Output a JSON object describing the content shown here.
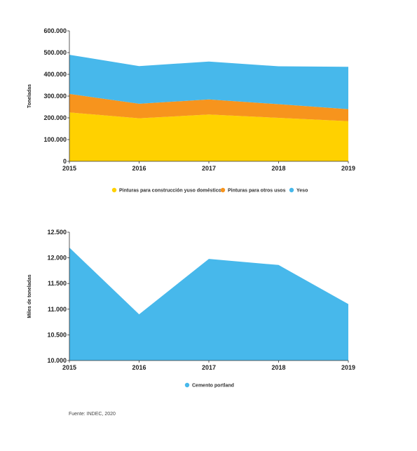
{
  "chart_data": [
    {
      "type": "area",
      "stacked": true,
      "x": [
        "2015",
        "2016",
        "2017",
        "2018",
        "2019"
      ],
      "ylabel": "Toneladas",
      "ylim": [
        0,
        600000
      ],
      "yticks": [
        "0",
        "100.000",
        "200.000",
        "300.000",
        "400.000",
        "500.000",
        "600.000"
      ],
      "series": [
        {
          "name": "Pinturas para construcción yuso doméstico",
          "color": "#FFD100",
          "values": [
            225000,
            198000,
            215000,
            200000,
            185000
          ]
        },
        {
          "name": "Pinturas para otros usos",
          "color": "#F7941D",
          "values": [
            85000,
            67000,
            70000,
            63000,
            55000
          ]
        },
        {
          "name": "Yeso",
          "color": "#47B8EB",
          "values": [
            180000,
            173000,
            174000,
            174000,
            195000
          ]
        }
      ],
      "legend": "bottom"
    },
    {
      "type": "area",
      "x": [
        "2015",
        "2016",
        "2017",
        "2018",
        "2019"
      ],
      "ylabel": "Miles de toneladas",
      "ylim": [
        10000,
        12500
      ],
      "yticks": [
        "10.000",
        "10.500",
        "11.000",
        "11.500",
        "12.000",
        "12.500"
      ],
      "series": [
        {
          "name": "Cemento portland",
          "color": "#47B8EB",
          "values": [
            12200,
            10900,
            11980,
            11860,
            11100
          ]
        }
      ],
      "legend": "bottom"
    }
  ],
  "source": "Fuente: INDEC, 2020"
}
